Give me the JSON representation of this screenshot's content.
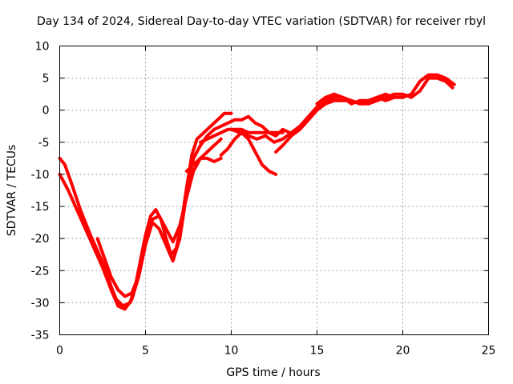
{
  "chart_data": {
    "type": "line",
    "title": "Day 134 of 2024, Sidereal Day-to-day VTEC variation (SDTVAR) for receiver rbyl",
    "xlabel": "GPS time / hours",
    "ylabel": "SDTVAR / TECUs",
    "xlim": [
      0,
      25
    ],
    "ylim": [
      -35,
      10
    ],
    "xticks": [
      0,
      5,
      10,
      15,
      20,
      25
    ],
    "yticks": [
      -35,
      -30,
      -25,
      -20,
      -15,
      -10,
      -5,
      0,
      5,
      10
    ],
    "grid": true,
    "color": "#ff0000",
    "series": [
      {
        "name": "track-1",
        "x": [
          0.0,
          0.3,
          0.7,
          1.2,
          1.8,
          2.3,
          2.7,
          3.0,
          3.3,
          3.7,
          4.1,
          4.4,
          4.7,
          5.0,
          5.3,
          5.6,
          5.9,
          6.2,
          6.5,
          6.8,
          7.1,
          7.4,
          7.7,
          8.0,
          8.4,
          8.8,
          9.2,
          9.6,
          10.0
        ],
        "y": [
          -7.5,
          -8.5,
          -11.5,
          -15.5,
          -19.5,
          -22.5,
          -25.0,
          -27.5,
          -29.5,
          -30.5,
          -30.0,
          -27.5,
          -23.5,
          -19.5,
          -16.5,
          -15.5,
          -17.0,
          -20.0,
          -22.5,
          -21.5,
          -17.5,
          -12.0,
          -7.0,
          -4.5,
          -3.5,
          -2.5,
          -1.5,
          -0.5,
          -0.5
        ]
      },
      {
        "name": "track-2",
        "x": [
          0.0,
          0.5,
          1.0,
          1.5,
          2.0,
          2.5,
          3.0,
          3.4,
          3.8,
          4.2,
          4.6,
          5.0,
          5.4,
          5.8,
          6.2,
          6.6,
          7.0,
          7.4,
          7.8,
          8.2,
          8.6,
          9.0
        ],
        "y": [
          -10.0,
          -12.5,
          -15.5,
          -18.5,
          -21.5,
          -24.5,
          -28.0,
          -30.5,
          -31.0,
          -29.5,
          -26.0,
          -21.0,
          -17.5,
          -18.5,
          -21.0,
          -23.5,
          -20.0,
          -13.0,
          -7.5,
          -5.5,
          -4.0,
          -3.0
        ]
      },
      {
        "name": "track-3",
        "x": [
          2.2,
          2.6,
          3.0,
          3.4,
          3.8,
          4.2,
          4.5,
          4.8,
          5.1,
          5.4,
          5.8,
          6.2,
          6.6,
          7.0,
          7.4,
          7.8,
          8.2,
          8.6,
          9.0,
          9.4
        ],
        "y": [
          -20.0,
          -23.0,
          -26.0,
          -28.0,
          -29.0,
          -28.5,
          -26.5,
          -23.0,
          -19.5,
          -17.0,
          -16.5,
          -18.5,
          -20.5,
          -18.0,
          -13.5,
          -9.5,
          -7.5,
          -6.5,
          -5.5,
          -4.5
        ]
      },
      {
        "name": "track-4",
        "x": [
          7.4,
          7.8,
          8.2,
          8.6,
          9.0,
          9.4
        ],
        "y": [
          -9.5,
          -8.5,
          -7.5,
          -7.5,
          -8.0,
          -7.5
        ]
      },
      {
        "name": "track-5",
        "x": [
          9.4,
          9.8,
          10.2,
          10.6,
          11.0,
          11.4,
          11.8,
          12.2,
          12.6
        ],
        "y": [
          -7.0,
          -6.0,
          -4.5,
          -3.5,
          -4.5,
          -6.5,
          -8.5,
          -9.5,
          -10.0
        ]
      },
      {
        "name": "track-6",
        "x": [
          8.2,
          8.6,
          9.0,
          9.4,
          9.8,
          10.2,
          10.6,
          11.0,
          11.4,
          11.8,
          12.2,
          12.6,
          13.0
        ],
        "y": [
          -5.0,
          -4.5,
          -4.0,
          -3.5,
          -3.0,
          -3.0,
          -3.0,
          -3.5,
          -3.5,
          -3.5,
          -3.5,
          -3.5,
          -3.5
        ]
      },
      {
        "name": "track-7",
        "x": [
          9.0,
          9.4,
          9.8,
          10.2,
          10.6,
          11.0,
          11.4,
          11.8,
          12.2,
          12.6,
          13.0,
          13.4
        ],
        "y": [
          -3.0,
          -2.5,
          -2.0,
          -1.5,
          -1.5,
          -1.0,
          -2.0,
          -2.5,
          -3.5,
          -4.0,
          -3.0,
          -3.5
        ]
      },
      {
        "name": "track-8",
        "x": [
          10.0,
          10.5,
          11.0,
          11.5,
          12.0,
          12.5,
          13.0,
          13.5,
          14.0,
          14.5,
          15.0,
          15.5,
          16.0,
          16.5,
          17.0,
          17.5,
          18.0,
          18.5,
          19.0,
          19.5,
          20.0,
          20.5,
          21.0,
          21.5,
          22.0,
          22.5,
          23.0
        ],
        "y": [
          -3.0,
          -3.5,
          -4.0,
          -4.5,
          -4.0,
          -5.0,
          -4.5,
          -3.5,
          -2.5,
          -1.0,
          0.5,
          1.5,
          2.0,
          2.0,
          1.0,
          1.5,
          1.5,
          2.0,
          1.5,
          2.0,
          2.0,
          2.5,
          4.5,
          5.5,
          5.5,
          5.0,
          4.0
        ]
      },
      {
        "name": "track-9",
        "x": [
          12.6,
          13.0,
          13.5,
          14.0,
          14.5,
          15.0,
          15.5,
          16.0,
          16.5,
          17.0,
          17.5,
          18.0,
          18.5,
          19.0,
          19.5,
          20.0,
          20.5,
          21.0,
          21.5,
          22.0,
          22.5,
          22.9
        ],
        "y": [
          -6.5,
          -5.5,
          -4.0,
          -3.0,
          -1.5,
          0.0,
          1.0,
          1.5,
          1.5,
          1.5,
          1.0,
          1.0,
          1.5,
          2.0,
          2.5,
          2.5,
          2.0,
          3.0,
          5.0,
          5.0,
          4.5,
          3.5
        ]
      },
      {
        "name": "track-10",
        "x": [
          15.0,
          15.5,
          16.0,
          16.5,
          17.0,
          17.5,
          18.0,
          18.5,
          19.0,
          19.4
        ],
        "y": [
          1.0,
          2.0,
          2.5,
          2.0,
          1.5,
          1.0,
          1.5,
          2.0,
          2.5,
          2.0
        ]
      }
    ]
  }
}
